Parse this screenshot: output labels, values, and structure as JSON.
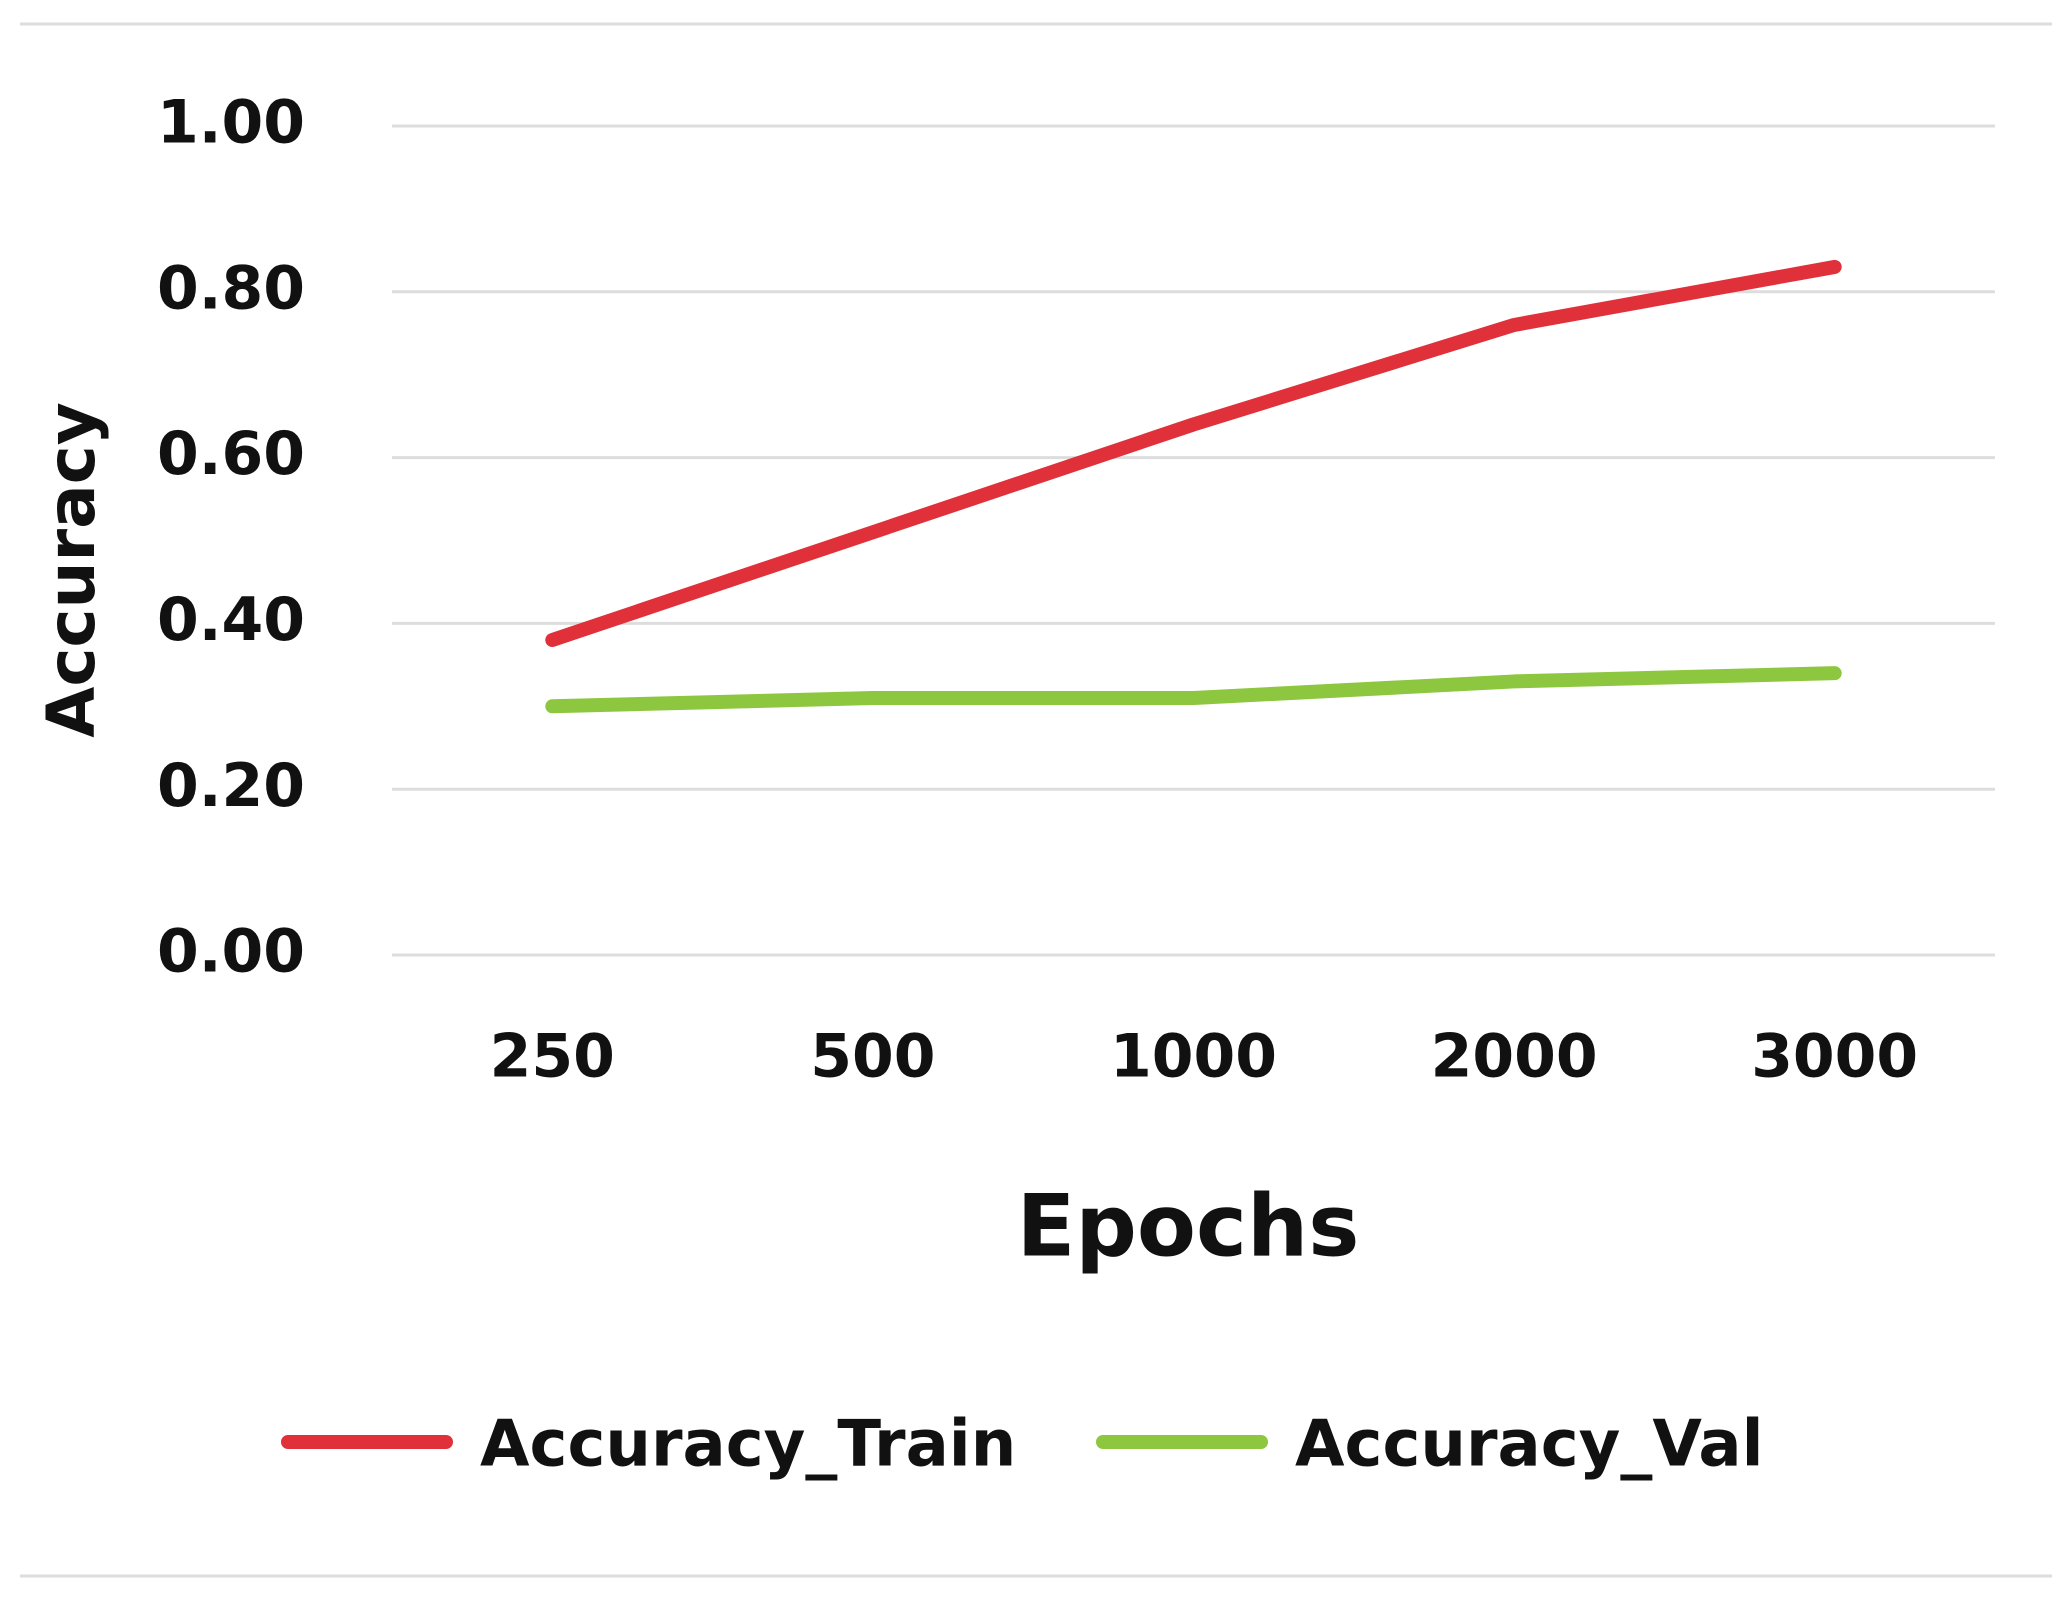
{
  "chart_data": {
    "type": "line",
    "x_label": "Epochs",
    "y_label": "Accuracy",
    "categories": [
      "250",
      "500",
      "1000",
      "2000",
      "3000"
    ],
    "series": [
      {
        "name": "Accuracy_Train",
        "color": "#e0303a",
        "values": [
          0.38,
          0.51,
          0.64,
          0.76,
          0.83
        ]
      },
      {
        "name": "Accuracy_Val",
        "color": "#8dc63f",
        "values": [
          0.3,
          0.31,
          0.31,
          0.33,
          0.34
        ]
      }
    ],
    "ylim": [
      0,
      1
    ],
    "yticks": [
      {
        "value": 0,
        "label": "0.00"
      },
      {
        "value": 0.2,
        "label": "0.20"
      },
      {
        "value": 0.4,
        "label": "0.40"
      },
      {
        "value": 0.6,
        "label": "0.60"
      },
      {
        "value": 0.8,
        "label": "0.80"
      },
      {
        "value": 1,
        "label": "1.00"
      }
    ],
    "grid": true,
    "legend": "bottom"
  }
}
